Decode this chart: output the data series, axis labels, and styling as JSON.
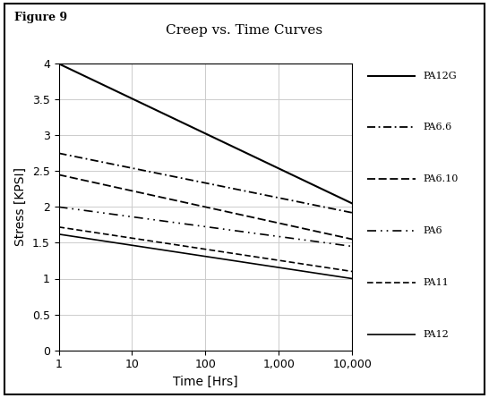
{
  "title": "Creep vs. Time Curves",
  "figure_label": "Figure 9",
  "xlabel": "Time [Hrs]",
  "ylabel": "Stress [KPSI]",
  "xlim": [
    1,
    10000
  ],
  "ylim": [
    0,
    4
  ],
  "background_color": "#ffffff",
  "grid_color": "#cccccc",
  "curve_data": {
    "PA12G": {
      "y_start": 4.0,
      "y_end": 2.05,
      "ls": "solid",
      "lw": 1.5
    },
    "PA6.6": {
      "y_start": 2.75,
      "y_end": 1.92,
      "ls": "dashdot_custom",
      "lw": 1.3
    },
    "PA6.10": {
      "y_start": 2.45,
      "y_end": 1.55,
      "ls": "dashed_custom",
      "lw": 1.3
    },
    "PA6": {
      "y_start": 2.0,
      "y_end": 1.45,
      "ls": "dashdotdot_custom",
      "lw": 1.2
    },
    "PA11": {
      "y_start": 1.72,
      "y_end": 1.1,
      "ls": "dashed_short",
      "lw": 1.2
    },
    "PA12": {
      "y_start": 1.62,
      "y_end": 1.0,
      "ls": "solid",
      "lw": 1.2
    }
  },
  "legend_order": [
    "PA12G",
    "PA6.6",
    "PA6.10",
    "PA6",
    "PA11",
    "PA12"
  ],
  "title_fontsize": 11,
  "label_fontsize": 10,
  "tick_fontsize": 9,
  "legend_fontsize": 8,
  "figure_label_fontsize": 9
}
